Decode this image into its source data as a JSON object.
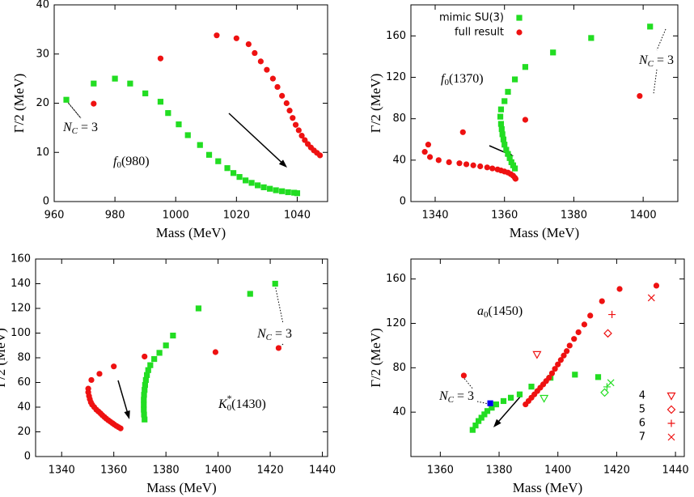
{
  "chart_data": [
    {
      "type": "scatter",
      "x_label": "Mass (MeV)",
      "y_label": "Γ/2 (MeV)",
      "xlim": [
        960,
        1050
      ],
      "ylim": [
        0,
        40
      ],
      "xticks": [
        960,
        980,
        1000,
        1020,
        1040
      ],
      "yticks": [
        0,
        10,
        20,
        30,
        40
      ],
      "annotations": [
        {
          "parts": [
            {
              "text": "f",
              "style": "italic"
            },
            {
              "text": "0",
              "style": "sub"
            },
            {
              "text": "(980)",
              "style": "normal"
            }
          ]
        },
        {
          "parts": [
            {
              "text": "N",
              "style": "italic"
            },
            {
              "text": "C",
              "style": "sub-italic"
            },
            {
              "text": " = 3",
              "style": "normal"
            }
          ]
        }
      ],
      "series": [
        {
          "color": "#22dd22",
          "marker": "square",
          "x": [
            964,
            973,
            980,
            985,
            990,
            995,
            997.5,
            1001,
            1004,
            1008,
            1011,
            1014,
            1017,
            1019,
            1021,
            1023,
            1025,
            1027,
            1029,
            1031,
            1033,
            1035,
            1037,
            1039,
            1040
          ],
          "values": [
            20.7,
            24,
            25,
            24,
            22,
            20.3,
            18,
            15.7,
            13.5,
            11.5,
            9.5,
            8.2,
            6.8,
            5.8,
            5,
            4.3,
            3.8,
            3.3,
            2.9,
            2.6,
            2.3,
            2.1,
            1.9,
            1.8,
            1.7
          ]
        },
        {
          "color": "#ee1111",
          "marker": "circle",
          "x": [
            973,
            995,
            1013.5,
            1020,
            1024,
            1026,
            1028,
            1030,
            1032,
            1033.5,
            1035,
            1036.5,
            1037.5,
            1038.5,
            1039.5,
            1040.5,
            1041.5,
            1042.5,
            1043.5,
            1044.5,
            1045.5,
            1046.5,
            1047.5
          ],
          "values": [
            19.9,
            29.1,
            33.8,
            33.2,
            32,
            30.2,
            28.5,
            26.8,
            25,
            23.3,
            21.5,
            20,
            18.5,
            17,
            15.6,
            14.5,
            13.4,
            12.5,
            11.7,
            11,
            10.4,
            9.9,
            9.4
          ]
        }
      ]
    },
    {
      "type": "scatter",
      "x_label": "Mass (MeV)",
      "y_label": "Γ/2 (MeV)",
      "legend": "top-left",
      "xlim": [
        1333,
        1410
      ],
      "ylim": [
        0,
        190
      ],
      "xticks": [
        1340,
        1360,
        1380,
        1400
      ],
      "yticks": [
        0,
        40,
        80,
        120,
        160
      ],
      "annotations": [
        {
          "parts": [
            {
              "text": "f",
              "style": "italic"
            },
            {
              "text": "0",
              "style": "sub"
            },
            {
              "text": "(1370)",
              "style": "normal"
            }
          ]
        },
        {
          "parts": [
            {
              "text": "N",
              "style": "italic"
            },
            {
              "text": "C",
              "style": "sub-italic"
            },
            {
              "text": " = 3",
              "style": "normal"
            }
          ]
        }
      ],
      "series": [
        {
          "name": "mimic SU(3)",
          "color": "#22dd22",
          "marker": "square",
          "x": [
            1363,
            1362.5,
            1362,
            1361.5,
            1361,
            1360.5,
            1360,
            1359.7,
            1359.4,
            1359.2,
            1359,
            1358.8,
            1359,
            1360,
            1361,
            1363,
            1366,
            1374,
            1385,
            1402
          ],
          "values": [
            32,
            35,
            38,
            42,
            46,
            50,
            55,
            60,
            65,
            70,
            75,
            82,
            89,
            97,
            106,
            118,
            130,
            144,
            158,
            169
          ]
        },
        {
          "name": "full result",
          "color": "#ee1111",
          "marker": "circle",
          "x": [
            1337,
            1338,
            1338.5,
            1341,
            1344,
            1347,
            1349,
            1351,
            1353,
            1355,
            1356.5,
            1358,
            1359,
            1360,
            1361,
            1361.8,
            1362.5,
            1363,
            1363.2,
            1348,
            1366,
            1399
          ],
          "values": [
            48,
            55,
            43,
            40,
            38,
            37,
            36,
            35,
            34,
            33,
            32,
            31,
            30,
            29,
            28,
            26.5,
            25,
            23,
            22,
            67,
            79,
            102
          ]
        }
      ]
    },
    {
      "type": "scatter",
      "x_label": "Mass (MeV)",
      "y_label": "Γ/2 (MeV)",
      "xlim": [
        1330,
        1442
      ],
      "ylim": [
        0,
        160
      ],
      "xticks": [
        1340,
        1360,
        1380,
        1400,
        1420,
        1440
      ],
      "yticks": [
        0,
        20,
        40,
        60,
        80,
        100,
        120,
        140,
        160
      ],
      "annotations": [
        {
          "parts": [
            {
              "text": "K",
              "style": "italic"
            },
            {
              "text": "*",
              "style": "sup"
            },
            {
              "text": "0",
              "style": "sub"
            },
            {
              "text": "(1430)",
              "style": "normal"
            }
          ]
        },
        {
          "parts": [
            {
              "text": "N",
              "style": "italic"
            },
            {
              "text": "C",
              "style": "sub-italic"
            },
            {
              "text": " = 3",
              "style": "normal"
            }
          ]
        }
      ],
      "series": [
        {
          "color": "#22dd22",
          "marker": "square",
          "x": [
            1371.8,
            1371.6,
            1371.5,
            1371.5,
            1371.5,
            1371.6,
            1371.8,
            1372,
            1372.3,
            1372.7,
            1373.2,
            1374,
            1375.5,
            1377.5,
            1380,
            1382.7,
            1392.5,
            1412.3,
            1421.9
          ],
          "values": [
            30,
            34,
            38,
            42,
            46,
            50,
            54,
            58,
            62,
            66,
            70,
            74,
            79,
            84,
            90,
            98,
            120,
            131.8,
            140
          ]
        },
        {
          "color": "#ee1111",
          "marker": "circle",
          "x": [
            1350.2,
            1350.2,
            1350.5,
            1350.8,
            1351.2,
            1351.7,
            1352.5,
            1353.3,
            1354.1,
            1354.9,
            1355.6,
            1356.4,
            1357.1,
            1357.9,
            1358.7,
            1359.5,
            1360.2,
            1361,
            1361.8,
            1362.6,
            1351.4,
            1354.5,
            1360,
            1371.8,
            1399,
            1423.2
          ],
          "values": [
            55,
            52,
            49,
            46.5,
            44,
            42,
            40,
            38,
            36.5,
            35,
            33.5,
            32,
            30.7,
            29.4,
            28.2,
            27,
            25.9,
            24.8,
            23.8,
            22.8,
            62,
            67,
            73,
            81,
            84.6,
            87.9
          ]
        }
      ]
    },
    {
      "type": "scatter",
      "x_label": "Mass (MeV)",
      "y_label": "Γ/2 (MeV)",
      "legend": "bottom-right",
      "xlim": [
        1350,
        1443
      ],
      "ylim": [
        0,
        178
      ],
      "xticks": [
        1360,
        1380,
        1400,
        1420,
        1440
      ],
      "yticks": [
        40,
        80,
        120,
        160
      ],
      "annotations": [
        {
          "parts": [
            {
              "text": "a",
              "style": "italic"
            },
            {
              "text": "0",
              "style": "sub"
            },
            {
              "text": "(1450)",
              "style": "normal"
            }
          ]
        },
        {
          "parts": [
            {
              "text": "N",
              "style": "italic"
            },
            {
              "text": "C",
              "style": "sub-italic"
            },
            {
              "text": " = 3",
              "style": "normal"
            }
          ]
        }
      ],
      "series": [
        {
          "color": "#22dd22",
          "marker": "square",
          "x": [
            1371,
            1372,
            1373,
            1374,
            1375,
            1376,
            1377.5,
            1379,
            1381.5,
            1384,
            1387,
            1391,
            1397.5,
            1405.8,
            1413.7
          ],
          "values": [
            24,
            28,
            32,
            35,
            38,
            41,
            44,
            47,
            50,
            53,
            56,
            63,
            71,
            73.8,
            71.6
          ]
        },
        {
          "color": "#ee1111",
          "marker": "circle",
          "x": [
            1368,
            1389,
            1390,
            1391,
            1392,
            1393,
            1394,
            1395,
            1396,
            1397,
            1398,
            1399,
            1400,
            1401,
            1402,
            1403,
            1404,
            1405.5,
            1407,
            1409,
            1411,
            1415,
            1421,
            1433.5
          ],
          "values": [
            73,
            47,
            50,
            53,
            56,
            59,
            62,
            65,
            68,
            71,
            75,
            79,
            83,
            87,
            91,
            95,
            100,
            106,
            112,
            119,
            127,
            140,
            151,
            154
          ]
        },
        {
          "color": "#0000ee",
          "marker": "square",
          "x": [
            1377
          ],
          "values": [
            48
          ]
        },
        {
          "name": "4",
          "color": "#ee1111",
          "marker": "triangle-down",
          "x": [
            1392.9
          ],
          "values": [
            92
          ]
        },
        {
          "name": "5",
          "color": "#ee1111",
          "marker": "diamond",
          "x": [
            1417
          ],
          "values": [
            111
          ]
        },
        {
          "name": "6",
          "color": "#ee1111",
          "marker": "plus",
          "x": [
            1418.4
          ],
          "values": [
            128
          ]
        },
        {
          "name": "7",
          "color": "#ee1111",
          "marker": "cross",
          "x": [
            1431.8
          ],
          "values": [
            143
          ]
        },
        {
          "color": "#22dd22",
          "marker": "triangle-down",
          "x": [
            1395.3
          ],
          "values": [
            52.5
          ]
        },
        {
          "color": "#22dd22",
          "marker": "diamond",
          "x": [
            1415.9
          ],
          "values": [
            57.7
          ]
        },
        {
          "color": "#22dd22",
          "marker": "plus",
          "x": [
            1416.7
          ],
          "values": [
            62.8
          ]
        },
        {
          "color": "#22dd22",
          "marker": "cross",
          "x": [
            1418
          ],
          "values": [
            66.5
          ]
        }
      ]
    }
  ]
}
